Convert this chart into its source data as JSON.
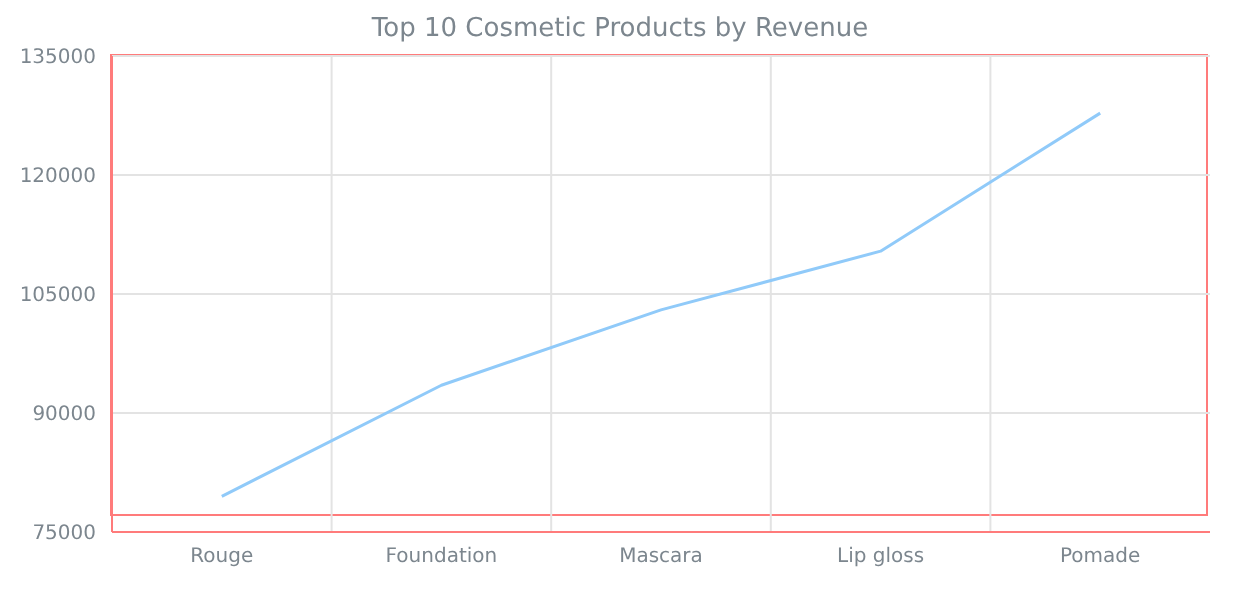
{
  "chart_data": {
    "type": "line",
    "title": "Top 10 Cosmetic Products by Revenue",
    "categories": [
      "Rouge",
      "Foundation",
      "Mascara",
      "Lip gloss",
      "Pomade"
    ],
    "series": [
      {
        "color": "#90caf9",
        "values": [
          79500,
          93500,
          103000,
          110400,
          127800
        ]
      }
    ],
    "ylim": [
      75000,
      135000
    ],
    "yticks": [
      75000,
      90000,
      105000,
      120000,
      135000
    ],
    "grid": true,
    "marker": "none",
    "line_style": "solid"
  }
}
